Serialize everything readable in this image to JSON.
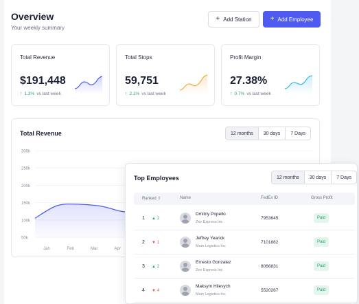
{
  "header": {
    "title": "Overview",
    "subtitle": "Your weekly summary",
    "add_station_label": "Add Station",
    "add_employee_label": "Add Employee"
  },
  "stats": [
    {
      "title": "Total Revenue",
      "value": "$191,448",
      "change": "1.3%",
      "change_suffix": "vs last week",
      "color": "#4f5bf0"
    },
    {
      "title": "Total Stops",
      "value": "59,751",
      "change": "2.1%",
      "change_suffix": "vs last week",
      "color": "#f2a93b"
    },
    {
      "title": "Profit Margin",
      "value": "27.38%",
      "change": "0.7%",
      "change_suffix": "vs last week",
      "color": "#38b6e8"
    }
  ],
  "revenue_chart": {
    "title": "Total Revenue",
    "ranges": [
      "12 months",
      "30 days",
      "7 Days"
    ],
    "selected_range": "12 months"
  },
  "chart_data": {
    "type": "area",
    "categories": [
      "Jan",
      "Feb",
      "Mar",
      "Apr"
    ],
    "values": [
      105000,
      146000,
      141000,
      122000
    ],
    "y_ticks": [
      "300k",
      "250k",
      "200k",
      "150k",
      "100k",
      "50k"
    ],
    "ylim": [
      50000,
      300000
    ],
    "color": "#4f5bf0"
  },
  "employees": {
    "title": "Top Employees",
    "ranges": [
      "12 months",
      "30 days",
      "7 Days"
    ],
    "selected_range": "12 months",
    "columns": [
      "Ranked",
      "Name",
      "FedEx ID",
      "Gross Profit"
    ],
    "rows": [
      {
        "rank": "1",
        "move": "2",
        "dir": "up",
        "name": "Dmitriy Popello",
        "company": "Zev Express Inc",
        "fedex_id": "7953645",
        "status": "Paid"
      },
      {
        "rank": "2",
        "move": "1",
        "dir": "down",
        "name": "Jeffrey Yearick",
        "company": "Main Logistics Inc",
        "fedex_id": "7101882",
        "status": "Paid"
      },
      {
        "rank": "3",
        "move": "2",
        "dir": "up",
        "name": "Ernesto Gonzalez",
        "company": "Zev Express Inc",
        "fedex_id": "8066831",
        "status": "Paid"
      },
      {
        "rank": "4",
        "move": "4",
        "dir": "down",
        "name": "Maksym Hilevych",
        "company": "Main Logistics Inc",
        "fedex_id": "5520267",
        "status": "Paid"
      }
    ]
  }
}
